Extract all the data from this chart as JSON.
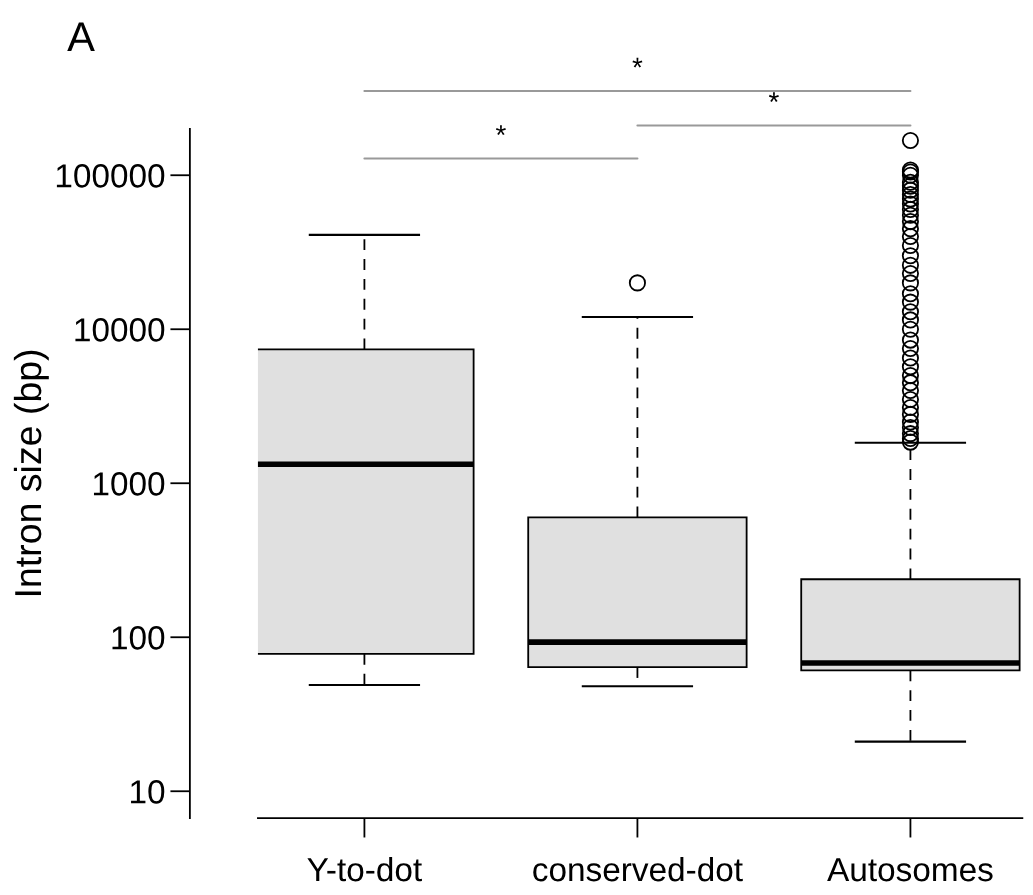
{
  "chart_data": {
    "type": "box",
    "title": "A",
    "ylabel": "Intron size (bp)",
    "categories": [
      "Y-to-dot",
      "conserved-dot",
      "Autosomes"
    ],
    "boxes": [
      {
        "low": 49,
        "q1": 78,
        "median": 1330,
        "q3": 7400,
        "high": 41000
      },
      {
        "low": 48,
        "q1": 64,
        "median": 93,
        "q3": 600,
        "high": 12000,
        "outliers": [
          20000
        ]
      },
      {
        "low": 21,
        "q1": 61,
        "median": 68,
        "q3": 238,
        "high": 1830,
        "outliers": [
          1850,
          1950,
          2100,
          2300,
          2500,
          2800,
          3100,
          3500,
          4000,
          4500,
          5000,
          5700,
          6500,
          7500,
          8500,
          10000,
          11500,
          13000,
          15000,
          17000,
          20000,
          23000,
          26000,
          30000,
          35000,
          40000,
          45000,
          50000,
          55000,
          60000,
          65000,
          70000,
          75000,
          80000,
          85000,
          90000,
          100000,
          105000,
          108000,
          168000
        ]
      }
    ],
    "log": true,
    "ylim": [
      6.7,
      200000
    ],
    "yticks": [
      10,
      100,
      1000,
      10000,
      100000
    ],
    "annotations": [
      "*",
      "*",
      "*"
    ],
    "grid": false,
    "legend": false
  }
}
